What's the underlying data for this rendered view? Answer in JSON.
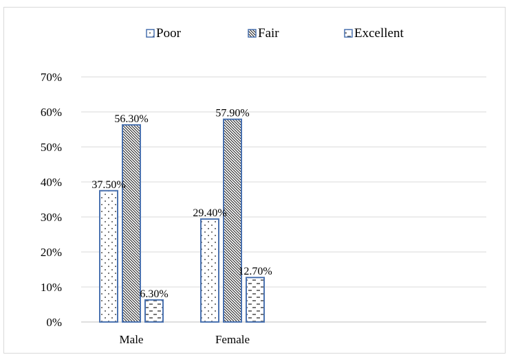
{
  "chart_data": {
    "type": "bar",
    "categories": [
      "Male",
      "Female"
    ],
    "series": [
      {
        "name": "Poor",
        "values": [
          37.5,
          29.4
        ],
        "labels": [
          "37.50%",
          "29.40%"
        ],
        "pattern": "dots"
      },
      {
        "name": "Fair",
        "values": [
          56.3,
          57.9
        ],
        "labels": [
          "56.30%",
          "57.90%"
        ],
        "pattern": "diagonal"
      },
      {
        "name": "Excellent",
        "values": [
          6.3,
          12.7
        ],
        "labels": [
          "6.30%",
          "12.70%"
        ],
        "pattern": "dashes"
      }
    ],
    "ylim": [
      0,
      70
    ],
    "y_ticks": [
      0,
      10,
      20,
      30,
      40,
      50,
      60,
      70
    ],
    "y_tick_labels": [
      "0%",
      "10%",
      "20%",
      "30%",
      "40%",
      "50%",
      "60%",
      "70%"
    ],
    "legend_position": "top",
    "grid": true,
    "colors": {
      "bar_outline": "#4a72b0",
      "gridline": "#d9d9d9",
      "pattern_ink": "#1a1a1a"
    }
  }
}
